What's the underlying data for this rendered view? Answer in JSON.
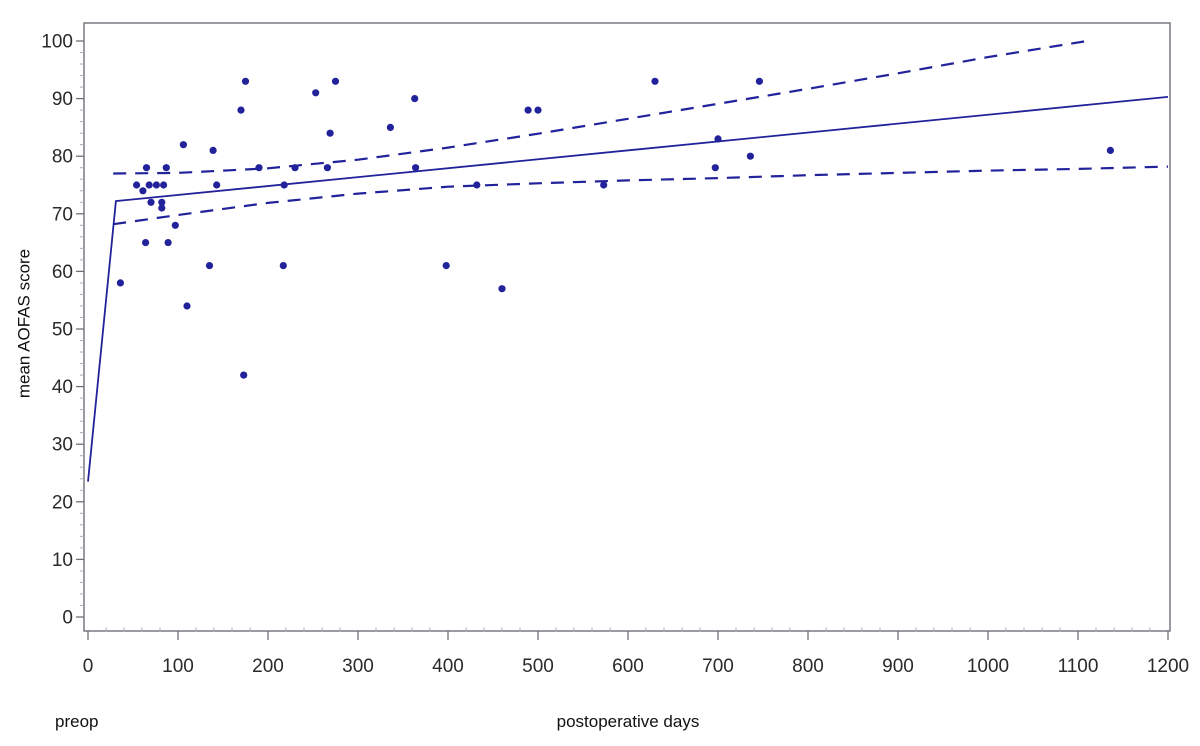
{
  "chart_data": {
    "type": "scatter",
    "title": "",
    "xlabel": "postoperative days",
    "ylabel": "mean AOFAS score",
    "preop_label": "preop",
    "xlim": [
      0,
      1200
    ],
    "ylim": [
      0,
      100
    ],
    "x_ticks": [
      0,
      100,
      200,
      300,
      400,
      500,
      600,
      700,
      800,
      900,
      1000,
      1100,
      1200
    ],
    "y_ticks": [
      0,
      10,
      20,
      30,
      40,
      50,
      60,
      70,
      80,
      90,
      100
    ],
    "x_minor_step": 20,
    "y_minor_step": 2,
    "grid": false,
    "legend": null,
    "points": [
      [
        36,
        58
      ],
      [
        54,
        75
      ],
      [
        61,
        74
      ],
      [
        64,
        65
      ],
      [
        65,
        78
      ],
      [
        68,
        75
      ],
      [
        70,
        72
      ],
      [
        76,
        75
      ],
      [
        82,
        72
      ],
      [
        82,
        71
      ],
      [
        84,
        75
      ],
      [
        87,
        78
      ],
      [
        89,
        65
      ],
      [
        97,
        68
      ],
      [
        106,
        82
      ],
      [
        110,
        54
      ],
      [
        135,
        61
      ],
      [
        139,
        81
      ],
      [
        143,
        75
      ],
      [
        170,
        88
      ],
      [
        173,
        42
      ],
      [
        175,
        93
      ],
      [
        190,
        78
      ],
      [
        217,
        61
      ],
      [
        218,
        75
      ],
      [
        230,
        78
      ],
      [
        253,
        91
      ],
      [
        266,
        78
      ],
      [
        269,
        84
      ],
      [
        275,
        93
      ],
      [
        336,
        85
      ],
      [
        363,
        90
      ],
      [
        364,
        78
      ],
      [
        398,
        61
      ],
      [
        432,
        75
      ],
      [
        460,
        57
      ],
      [
        489,
        88
      ],
      [
        500,
        88
      ],
      [
        573,
        75
      ],
      [
        630,
        93
      ],
      [
        697,
        78
      ],
      [
        700,
        83
      ],
      [
        736,
        80
      ],
      [
        746,
        93
      ],
      [
        1136,
        81
      ]
    ],
    "fit_line": [
      [
        0,
        23.5
      ],
      [
        31,
        72.2
      ],
      [
        1200,
        90.3
      ]
    ],
    "upper_band": [
      [
        28,
        77.0
      ],
      [
        100,
        77.1
      ],
      [
        200,
        77.9
      ],
      [
        300,
        79.4
      ],
      [
        400,
        81.5
      ],
      [
        500,
        83.9
      ],
      [
        600,
        86.5
      ],
      [
        700,
        89.1
      ],
      [
        800,
        91.7
      ],
      [
        900,
        94.4
      ],
      [
        1000,
        97.2
      ],
      [
        1110,
        100.0
      ]
    ],
    "lower_band": [
      [
        28,
        68.2
      ],
      [
        100,
        69.8
      ],
      [
        200,
        71.9
      ],
      [
        300,
        73.5
      ],
      [
        400,
        74.7
      ],
      [
        500,
        75.3
      ],
      [
        600,
        75.8
      ],
      [
        700,
        76.2
      ],
      [
        800,
        76.7
      ],
      [
        900,
        77.1
      ],
      [
        1000,
        77.5
      ],
      [
        1100,
        77.8
      ],
      [
        1200,
        78.2
      ]
    ],
    "colors": {
      "series": "#22229b",
      "frame": "#6f6f78",
      "minor_tick": "#a9a9b4",
      "tick_label": "#2a2a2a",
      "axis_label": "#111111",
      "background": "#ffffff"
    }
  }
}
